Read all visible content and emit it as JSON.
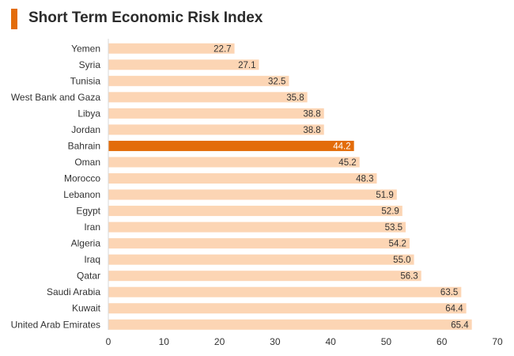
{
  "chart_data": {
    "type": "bar",
    "orientation": "horizontal",
    "title": "Short Term Economic Risk Index",
    "categories": [
      "Yemen",
      "Syria",
      "Tunisia",
      "West Bank and Gaza",
      "Libya",
      "Jordan",
      "Bahrain",
      "Oman",
      "Morocco",
      "Lebanon",
      "Egypt",
      "Iran",
      "Algeria",
      "Iraq",
      "Qatar",
      "Saudi Arabia",
      "Kuwait",
      "United Arab Emirates"
    ],
    "values": [
      22.7,
      27.1,
      32.5,
      35.8,
      38.8,
      38.8,
      44.2,
      45.2,
      48.3,
      51.9,
      52.9,
      53.5,
      54.2,
      55.0,
      56.3,
      63.5,
      64.4,
      65.4
    ],
    "value_labels": [
      "22.7",
      "27.1",
      "32.5",
      "35.8",
      "38.8",
      "38.8",
      "44.2",
      "45.2",
      "48.3",
      "51.9",
      "52.9",
      "53.5",
      "54.2",
      "55.0",
      "56.3",
      "63.5",
      "64.4",
      "65.4"
    ],
    "highlight": "Bahrain",
    "xlim": [
      0,
      70
    ],
    "xticks": [
      "0",
      "10",
      "20",
      "30",
      "40",
      "50",
      "60",
      "70"
    ],
    "grid": false,
    "legend": "none",
    "colors": {
      "bar": "#fcd5b4",
      "highlight": "#e36c0a",
      "title_accent": "#e36c0a"
    }
  }
}
